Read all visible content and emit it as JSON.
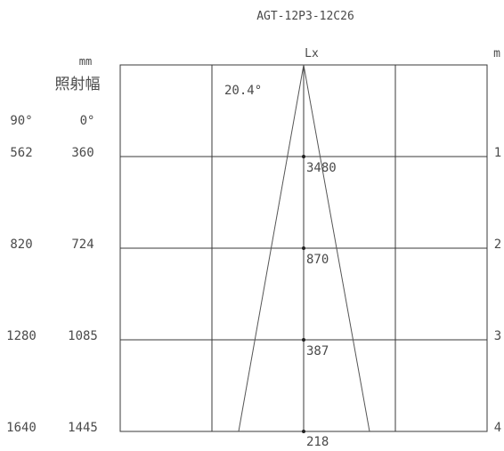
{
  "title": "AGT-12P3-12C26",
  "center_label": "Lx",
  "right_unit": "m",
  "left_unit": "mm",
  "width_label": "照射幅",
  "beam_angle_label": "20.4°",
  "col_90_header": "90°",
  "col_0_header": "0°",
  "rows": [
    {
      "distance": "1",
      "w90": "562",
      "w0": "360",
      "lux": "3480"
    },
    {
      "distance": "2",
      "w90": "820",
      "w0": "724",
      "lux": "870"
    },
    {
      "distance": "3",
      "w90": "1280",
      "w0": "1085",
      "lux": "387"
    },
    {
      "distance": "4",
      "w90": "1640",
      "w0": "1445",
      "lux": "218"
    }
  ]
}
